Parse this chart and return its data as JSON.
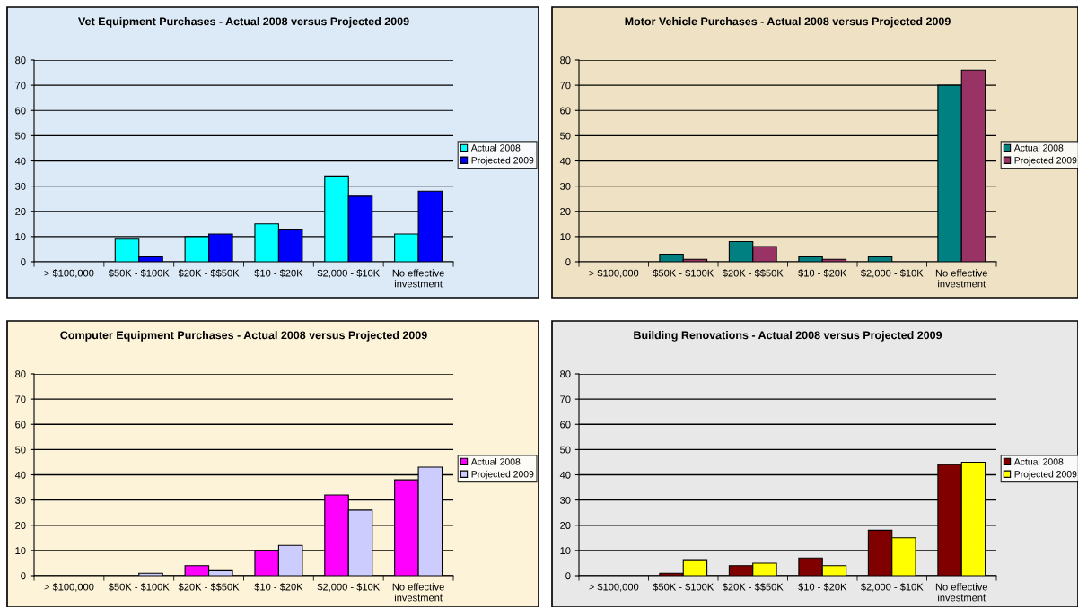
{
  "chart_data": [
    {
      "type": "bar",
      "title": "Vet Equipment Purchases - Actual 2008 versus Projected 2009",
      "categories": [
        "> $100,000",
        "$50K - $100K",
        "$20K - $$50K",
        "$10 - $20K",
        "$2,000 - $10K",
        "No effective\ninvestment"
      ],
      "series": [
        {
          "name": "Actual 2008",
          "color": "#00ffff",
          "values": [
            0,
            9,
            10,
            15,
            34,
            11
          ]
        },
        {
          "name": "Projected 2009",
          "color": "#0000ff",
          "values": [
            0,
            2,
            11,
            13,
            26,
            28
          ]
        }
      ],
      "ylim": [
        0,
        80
      ],
      "yticks": [
        0,
        10,
        20,
        30,
        40,
        50,
        60,
        70,
        80
      ],
      "grid": "y",
      "legend": "right"
    },
    {
      "type": "bar",
      "title": "Motor Vehicle Purchases - Actual 2008 versus Projected 2009",
      "categories": [
        "> $100,000",
        "$50K - $100K",
        "$20K - $$50K",
        "$10 - $20K",
        "$2,000 - $10K",
        "No effective\ninvestment"
      ],
      "series": [
        {
          "name": "Actual 2008",
          "color": "#008080",
          "values": [
            0,
            3,
            8,
            2,
            2,
            70
          ]
        },
        {
          "name": "Projected 2009",
          "color": "#993366",
          "values": [
            0,
            1,
            6,
            1,
            0,
            76
          ]
        }
      ],
      "ylim": [
        0,
        80
      ],
      "yticks": [
        0,
        10,
        20,
        30,
        40,
        50,
        60,
        70,
        80
      ],
      "grid": "y",
      "legend": "right"
    },
    {
      "type": "bar",
      "title": "Computer Equipment Purchases - Actual 2008 versus Projected 2009",
      "categories": [
        "> $100,000",
        "$50K - $100K",
        "$20K - $$50K",
        "$10 - $20K",
        "$2,000 - $10K",
        "No effective\ninvestment"
      ],
      "series": [
        {
          "name": "Actual 2008",
          "color": "#ff00ff",
          "values": [
            0,
            0,
            4,
            10,
            32,
            38
          ]
        },
        {
          "name": "Projected 2009",
          "color": "#ccccff",
          "values": [
            0,
            1,
            2,
            12,
            26,
            43
          ]
        }
      ],
      "ylim": [
        0,
        80
      ],
      "yticks": [
        0,
        10,
        20,
        30,
        40,
        50,
        60,
        70,
        80
      ],
      "grid": "y",
      "legend": "right"
    },
    {
      "type": "bar",
      "title": "Building Renovations - Actual 2008 versus Projected 2009",
      "categories": [
        "> $100,000",
        "$50K - $100K",
        "$20K - $$50K",
        "$10 - $20K",
        "$2,000 - $10K",
        "No effective\ninvestment"
      ],
      "series": [
        {
          "name": "Actual 2008",
          "color": "#800000",
          "values": [
            0,
            1,
            4,
            7,
            18,
            44
          ]
        },
        {
          "name": "Projected 2009",
          "color": "#ffff00",
          "values": [
            0,
            6,
            5,
            4,
            15,
            45
          ]
        }
      ],
      "ylim": [
        0,
        80
      ],
      "yticks": [
        0,
        10,
        20,
        30,
        40,
        50,
        60,
        70,
        80
      ],
      "grid": "y",
      "legend": "right"
    }
  ]
}
